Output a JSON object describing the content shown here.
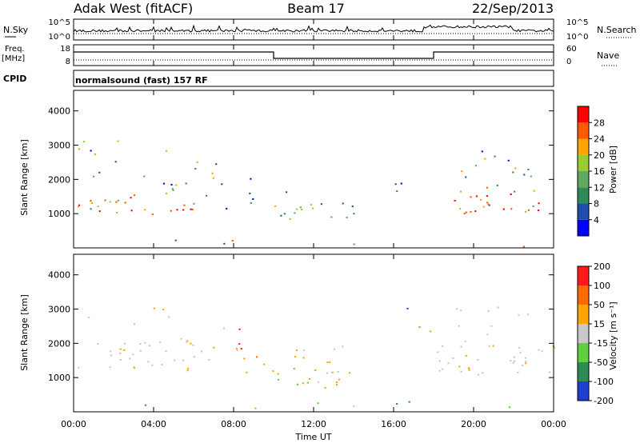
{
  "header": {
    "station": "Adak West (fitACF)",
    "beam": "Beam 17",
    "date": "22/Sep/2013"
  },
  "nsky_panel": {
    "left_label": "N.Sky",
    "right_label": "N.Search",
    "left_ticks": [
      "10^5",
      "10^0"
    ],
    "right_ticks": [
      "10^5",
      "10^0"
    ]
  },
  "freq_panel": {
    "left_label_1": "Freq.",
    "left_label_2": "[MHz]",
    "right_label": "Nave",
    "left_ticks": [
      "18",
      "8"
    ],
    "right_ticks": [
      "60",
      "0"
    ]
  },
  "cpid": {
    "label": "CPID",
    "text": "normalsound (fast) 157 RF"
  },
  "colors": {
    "power_scale": [
      "#0000ff",
      "#1f4fae",
      "#2e8b57",
      "#5faa5f",
      "#9acd32",
      "#ffa500",
      "#ff5a00",
      "#ff0000"
    ],
    "velocity_scale": [
      "#1f3fd0",
      "#2e8b57",
      "#5fcf3f",
      "#c8c8c8",
      "#ffa500",
      "#ff6a00",
      "#ff1a1a"
    ]
  },
  "chart_data": [
    {
      "type": "heatmap",
      "name": "power",
      "ylabel": "Slant Range [km]",
      "yticks": [
        1000,
        2000,
        3000,
        4000
      ],
      "ylim": [
        0,
        4600
      ],
      "colorbar": {
        "label": "Power [dB]",
        "ticks": [
          4,
          8,
          12,
          16,
          20,
          24,
          28
        ]
      }
    },
    {
      "type": "heatmap",
      "name": "velocity",
      "xlabel": "Time UT",
      "xticks": [
        "00:00",
        "04:00",
        "08:00",
        "12:00",
        "16:00",
        "20:00",
        "00:00"
      ],
      "ylabel": "Slant Range [km]",
      "yticks": [
        1000,
        2000,
        3000,
        4000
      ],
      "ylim": [
        0,
        4600
      ],
      "colorbar": {
        "label": "Velocity [m s⁻¹]",
        "ticks": [
          200,
          100,
          50,
          15,
          -15,
          -50,
          -100,
          -200
        ]
      }
    }
  ]
}
